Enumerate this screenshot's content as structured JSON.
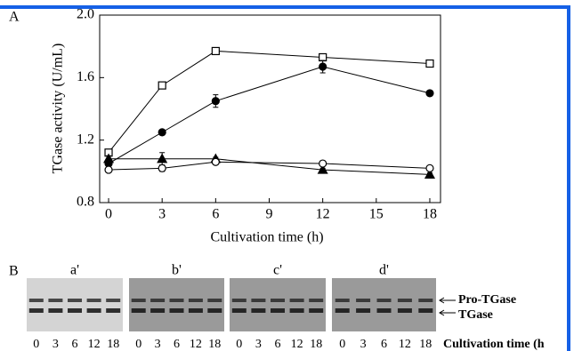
{
  "chart_data": {
    "type": "line",
    "panel_label": "A",
    "x_label": "Cultivation time (h)",
    "y_label": "TGase activity (U/mL)",
    "x": [
      0,
      3,
      6,
      12,
      18
    ],
    "series": [
      {
        "marker": "square-open",
        "color": "#000000",
        "values": [
          1.12,
          1.55,
          1.77,
          1.73,
          1.69
        ],
        "errors": [
          0.01,
          0.01,
          0.01,
          0.02,
          0.02
        ]
      },
      {
        "marker": "circle-filled",
        "color": "#000000",
        "values": [
          1.05,
          1.25,
          1.45,
          1.67,
          1.5
        ],
        "errors": [
          0.01,
          0.01,
          0.04,
          0.04,
          0.01
        ]
      },
      {
        "marker": "triangle-filled",
        "color": "#000000",
        "values": [
          1.08,
          1.08,
          1.08,
          1.01,
          0.98
        ],
        "errors": [
          0.02,
          0.04,
          0.01,
          0.01,
          0.01
        ]
      },
      {
        "marker": "circle-open",
        "color": "#000000",
        "values": [
          1.01,
          1.02,
          1.06,
          1.05,
          1.02
        ],
        "errors": [
          0.01,
          0.02,
          0.01,
          0.01,
          0.01
        ]
      }
    ],
    "xlim": [
      -0.5,
      18.6
    ],
    "ylim": [
      0.8,
      2.0
    ],
    "xticks": [
      0,
      3,
      6,
      9,
      12,
      15,
      18
    ],
    "yticks": [
      0.8,
      1.2,
      1.6,
      {
        "value": 2,
        "label": "2.0"
      }
    ]
  },
  "panel_b": {
    "label": "B",
    "gels": [
      {
        "label": "a'",
        "lanes": [
          "0",
          "3",
          "6",
          "12",
          "18"
        ]
      },
      {
        "label": "b'",
        "lanes": [
          "0",
          "3",
          "6",
          "12",
          "18"
        ]
      },
      {
        "label": "c'",
        "lanes": [
          "0",
          "3",
          "6",
          "12",
          "18"
        ]
      },
      {
        "label": "d'",
        "lanes": [
          "0",
          "3",
          "6",
          "12",
          "18"
        ]
      }
    ],
    "band_labels": [
      "Pro-TGase",
      "TGase"
    ],
    "x_label": "Cultivation time (h"
  }
}
